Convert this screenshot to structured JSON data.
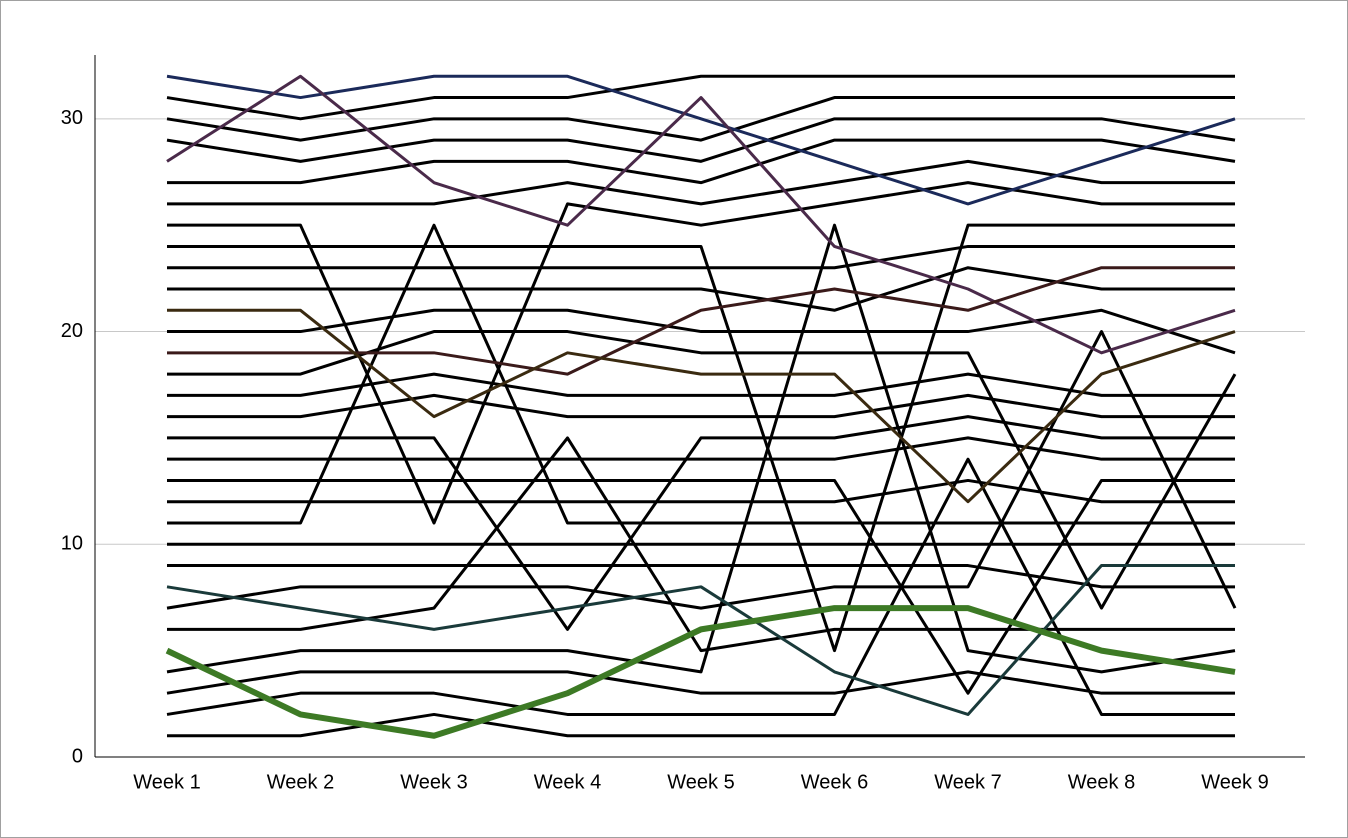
{
  "chart_data": {
    "type": "line",
    "categories": [
      "Week 1",
      "Week 2",
      "Week 3",
      "Week 4",
      "Week 5",
      "Week 6",
      "Week 7",
      "Week 8",
      "Week 9"
    ],
    "ylim": [
      0,
      33
    ],
    "yticks": [
      0,
      10,
      20,
      30
    ],
    "grid": true,
    "series": [
      {
        "color": "#000000",
        "values": [
          1,
          1,
          2,
          1,
          1,
          1,
          1,
          1,
          1
        ]
      },
      {
        "color": "#000000",
        "values": [
          2,
          3,
          3,
          2,
          2,
          2,
          14,
          2,
          2
        ]
      },
      {
        "color": "#000000",
        "values": [
          3,
          4,
          4,
          4,
          3,
          3,
          4,
          3,
          3
        ]
      },
      {
        "color": "#000000",
        "values": [
          4,
          5,
          5,
          5,
          4,
          25,
          5,
          4,
          5
        ]
      },
      {
        "color": "#000000",
        "values": [
          6,
          6,
          7,
          15,
          5,
          6,
          6,
          6,
          6
        ]
      },
      {
        "color": "#000000",
        "values": [
          7,
          8,
          8,
          8,
          7,
          8,
          8,
          20,
          7
        ]
      },
      {
        "color": "#000000",
        "values": [
          9,
          9,
          9,
          9,
          9,
          9,
          9,
          8,
          8
        ]
      },
      {
        "color": "#000000",
        "values": [
          10,
          10,
          10,
          10,
          10,
          10,
          10,
          10,
          10
        ]
      },
      {
        "color": "#000000",
        "values": [
          11,
          11,
          25,
          11,
          11,
          11,
          11,
          11,
          11
        ]
      },
      {
        "color": "#000000",
        "values": [
          12,
          12,
          12,
          12,
          12,
          12,
          13,
          12,
          12
        ]
      },
      {
        "color": "#000000",
        "values": [
          13,
          13,
          13,
          13,
          13,
          13,
          3,
          13,
          13
        ]
      },
      {
        "color": "#000000",
        "values": [
          14,
          14,
          14,
          14,
          14,
          14,
          15,
          14,
          14
        ]
      },
      {
        "color": "#000000",
        "values": [
          15,
          15,
          15,
          6,
          15,
          15,
          16,
          15,
          15
        ]
      },
      {
        "color": "#000000",
        "values": [
          16,
          16,
          17,
          16,
          16,
          16,
          17,
          16,
          16
        ]
      },
      {
        "color": "#000000",
        "values": [
          17,
          17,
          18,
          17,
          17,
          17,
          18,
          17,
          17
        ]
      },
      {
        "color": "#000000",
        "values": [
          18,
          18,
          20,
          20,
          19,
          19,
          19,
          7,
          18
        ]
      },
      {
        "color": "#000000",
        "values": [
          20,
          20,
          21,
          21,
          20,
          20,
          20,
          21,
          19
        ]
      },
      {
        "color": "#000000",
        "values": [
          22,
          22,
          22,
          22,
          22,
          21,
          23,
          22,
          22
        ]
      },
      {
        "color": "#000000",
        "values": [
          23,
          23,
          23,
          23,
          23,
          23,
          24,
          24,
          24
        ]
      },
      {
        "color": "#000000",
        "values": [
          24,
          24,
          24,
          24,
          24,
          5,
          25,
          25,
          25
        ]
      },
      {
        "color": "#000000",
        "values": [
          25,
          25,
          11,
          26,
          25,
          26,
          27,
          26,
          26
        ]
      },
      {
        "color": "#000000",
        "values": [
          26,
          26,
          26,
          27,
          26,
          27,
          28,
          27,
          27
        ]
      },
      {
        "color": "#000000",
        "values": [
          27,
          27,
          28,
          28,
          27,
          29,
          29,
          29,
          28
        ]
      },
      {
        "color": "#000000",
        "values": [
          29,
          28,
          29,
          29,
          28,
          30,
          30,
          30,
          29
        ]
      },
      {
        "color": "#000000",
        "values": [
          30,
          29,
          30,
          30,
          29,
          31,
          31,
          31,
          31
        ]
      },
      {
        "color": "#000000",
        "values": [
          31,
          30,
          31,
          31,
          32,
          32,
          32,
          32,
          32
        ]
      },
      {
        "color": "#1b2a5a",
        "values": [
          32,
          31,
          32,
          32,
          30,
          28,
          26,
          28,
          30
        ]
      },
      {
        "color": "#4a2a4a",
        "values": [
          28,
          32,
          27,
          25,
          31,
          24,
          22,
          19,
          21
        ]
      },
      {
        "color": "#3a1a1a",
        "values": [
          19,
          19,
          19,
          18,
          21,
          22,
          21,
          23,
          23
        ]
      },
      {
        "color": "#3a2a10",
        "values": [
          21,
          21,
          16,
          19,
          18,
          18,
          12,
          18,
          20
        ]
      },
      {
        "color": "#1a3a3a",
        "values": [
          8,
          7,
          6,
          7,
          8,
          4,
          2,
          9,
          9
        ]
      },
      {
        "color": "#3d7a25",
        "values": [
          5,
          2,
          1,
          3,
          6,
          7,
          7,
          5,
          4
        ]
      }
    ]
  }
}
